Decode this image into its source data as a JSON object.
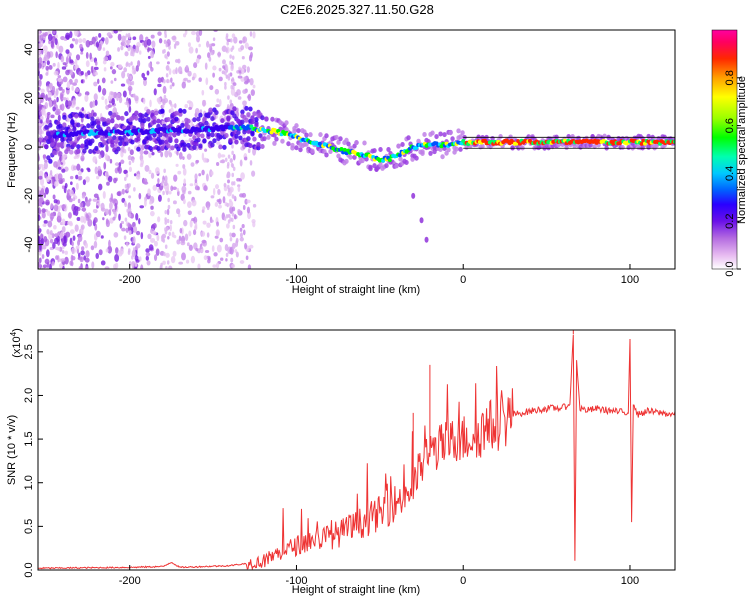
{
  "title": "C2E6.2025.327.11.50.G28",
  "chart_data": [
    {
      "type": "heatmap",
      "xlabel": "Height of straight line (km)",
      "ylabel": "Frequency (Hz)",
      "xlim": [
        -255,
        127
      ],
      "ylim": [
        -50,
        48
      ],
      "xticks": [
        -200,
        -100,
        0,
        100
      ],
      "yticks": [
        -40,
        -20,
        0,
        20,
        40
      ],
      "colorbar": {
        "label": "Normalized spectral amplitude",
        "ticks": [
          0.0,
          0.2,
          0.4,
          0.6,
          0.8
        ],
        "range": [
          0,
          1
        ],
        "colors": [
          "#ffffff",
          "#e6b8f0",
          "#b36ae0",
          "#7a1fe0",
          "#2a00ff",
          "#0050ff",
          "#00c8ff",
          "#00ffb0",
          "#00ff00",
          "#b0ff00",
          "#ffff00",
          "#ffa500",
          "#ff3000",
          "#ff0060",
          "#ff00a0"
        ]
      },
      "ridge": {
        "x": [
          -245,
          -220,
          -200,
          -180,
          -160,
          -140,
          -130,
          -120,
          -110,
          -100,
          -90,
          -80,
          -70,
          -60,
          -55,
          -50,
          -45,
          -40,
          -35,
          -30,
          -20,
          -10,
          0,
          20,
          40,
          60,
          80,
          100,
          127
        ],
        "y": [
          5,
          6,
          6,
          7,
          7,
          8,
          8,
          7,
          6,
          4,
          2,
          0,
          -2,
          -3,
          -4,
          -5,
          -5,
          -3,
          -2,
          0,
          1,
          1,
          2,
          2,
          2,
          2,
          2,
          2,
          2
        ]
      }
    },
    {
      "type": "line",
      "xlabel": "Height of straight line (km)",
      "ylabel": "SNR (10 * v/v)",
      "ylabel_scale": "(x10",
      "ylabel_scale_exp": "4",
      "xlim": [
        -255,
        127
      ],
      "ylim": [
        0,
        2.75
      ],
      "xticks": [
        -200,
        -100,
        0,
        100
      ],
      "yticks": [
        0.0,
        0.5,
        1.0,
        1.5,
        2.0,
        2.5
      ],
      "color": "#ee3333",
      "series": {
        "name": "SNR",
        "x": [
          -255,
          -200,
          -180,
          -175,
          -170,
          -140,
          -120,
          -110,
          -100,
          -90,
          -80,
          -70,
          -60,
          -50,
          -40,
          -30,
          -25,
          -20,
          -10,
          0,
          10,
          20,
          30,
          40,
          50,
          60,
          64,
          66,
          67,
          68,
          70,
          75,
          80,
          90,
          99,
          100,
          101,
          102,
          105,
          110,
          127
        ],
        "y": [
          0.02,
          0.03,
          0.04,
          0.09,
          0.03,
          0.05,
          0.1,
          0.2,
          0.28,
          0.35,
          0.38,
          0.45,
          0.55,
          0.65,
          0.78,
          0.95,
          1.2,
          1.35,
          1.45,
          1.5,
          1.58,
          1.68,
          1.78,
          1.82,
          1.85,
          1.86,
          1.9,
          2.7,
          0.1,
          2.4,
          1.85,
          1.83,
          1.85,
          1.82,
          1.8,
          2.65,
          0.55,
          1.9,
          1.78,
          1.82,
          1.78
        ],
        "spikes": [
          {
            "x": -30,
            "y": 1.8
          },
          {
            "x": -20,
            "y": 2.35
          },
          {
            "x": 66,
            "y": 2.75
          },
          {
            "x": 67,
            "y": 0.1
          },
          {
            "x": 100,
            "y": 2.65
          },
          {
            "x": 101,
            "y": 0.55
          }
        ]
      }
    }
  ]
}
